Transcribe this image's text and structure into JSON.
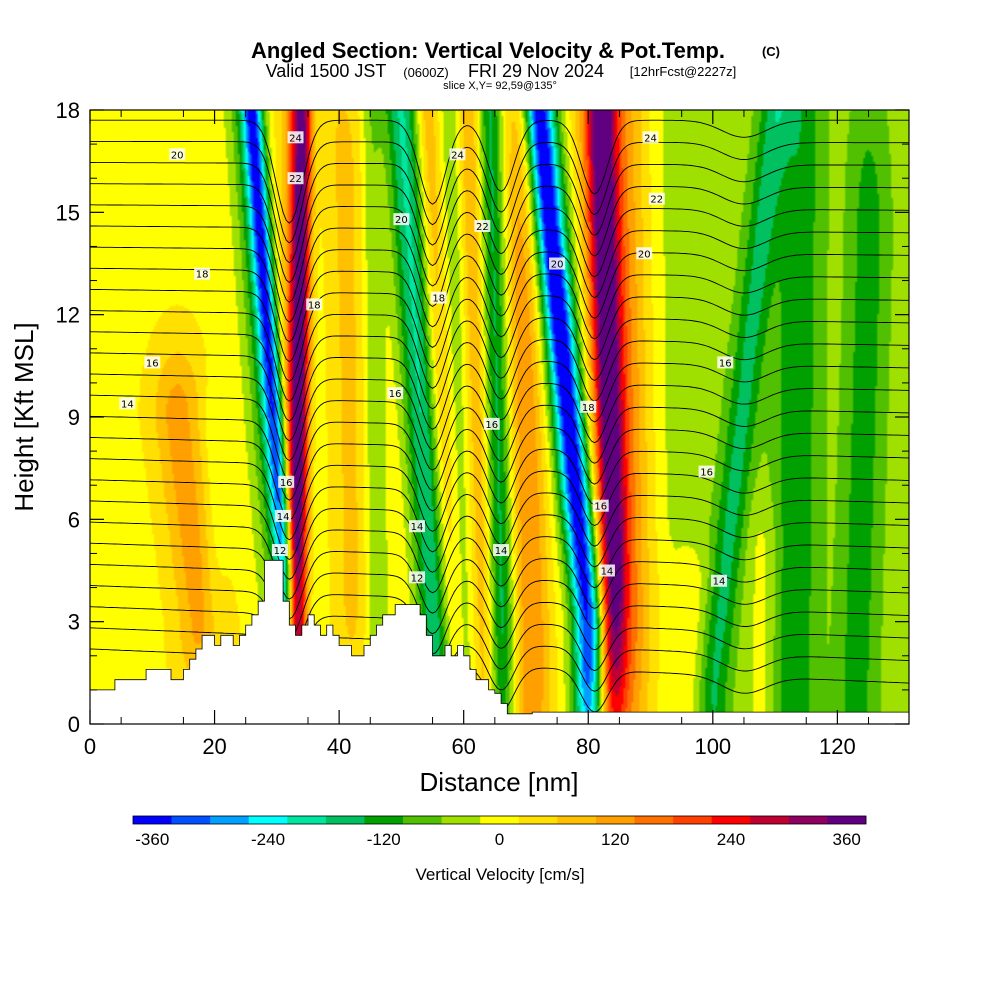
{
  "chart_data": {
    "type": "heatmap",
    "title": "Angled Section: Vertical Velocity & Pot.Temp.",
    "title_suffix": "(C)",
    "subtitle_valid": "Valid 1500 JST",
    "subtitle_zulu": "(0600Z)",
    "subtitle_date": "FRI 29 Nov 2024",
    "subtitle_fcst": "[12hrFcst@2227z]",
    "slice_text": "slice X,Y= 92,59@135°",
    "xlabel": "Distance [nm]",
    "ylabel": "Height [Kft MSL]",
    "colorbar_label": "Vertical Velocity [cm/s]",
    "xlim": [
      0,
      131.5
    ],
    "ylim": [
      0,
      18
    ],
    "x_ticks": [
      0,
      20,
      40,
      60,
      80,
      100,
      120
    ],
    "y_ticks": [
      0,
      3,
      6,
      9,
      12,
      15,
      18
    ],
    "colorbar": {
      "min": -380,
      "max": 380,
      "tick_labels": [
        "-360",
        "-240",
        "-120",
        "0",
        "120",
        "240",
        "360"
      ],
      "tick_values": [
        -360,
        -240,
        -120,
        0,
        120,
        240,
        360
      ],
      "colors": [
        "#0000ff",
        "#0050ff",
        "#00a0ff",
        "#00ffff",
        "#00e6a0",
        "#00c060",
        "#00a000",
        "#50c000",
        "#a0e000",
        "#ffff00",
        "#ffe000",
        "#ffc000",
        "#ffa000",
        "#ff7000",
        "#ff4000",
        "#ff0000",
        "#c00030",
        "#900060",
        "#600080"
      ]
    },
    "background_velocity": 10,
    "velocity_bands": [
      {
        "x_bottom": 31.5,
        "x_top": 26,
        "y_bottom": 4,
        "y_top": 18,
        "width": 1.6,
        "value": -280
      },
      {
        "x_bottom": 30.5,
        "x_top": 25,
        "y_bottom": 3,
        "y_top": 18,
        "width": 3.0,
        "value": -120
      },
      {
        "x_bottom": 33,
        "x_top": 34,
        "y_bottom": 3,
        "y_top": 17,
        "width": 1.6,
        "value": 300
      },
      {
        "x_bottom": 34,
        "x_top": 35,
        "y_bottom": 3,
        "y_top": 18,
        "width": 4.0,
        "value": 160
      },
      {
        "x_bottom": 36,
        "x_top": 36,
        "y_bottom": 3,
        "y_top": 18,
        "width": 2.5,
        "value": -140
      },
      {
        "x_bottom": 43,
        "x_top": 43,
        "y_bottom": 4,
        "y_top": 16,
        "width": 4.0,
        "value": 60
      },
      {
        "x_bottom": 46,
        "x_top": 45,
        "y_bottom": 3,
        "y_top": 18,
        "width": 2.0,
        "value": -100
      },
      {
        "x_bottom": 56,
        "x_top": 50,
        "y_bottom": 2,
        "y_top": 18,
        "width": 3.0,
        "value": -200
      },
      {
        "x_bottom": 58,
        "x_top": 54,
        "y_bottom": 2,
        "y_top": 18,
        "width": 2.0,
        "value": 100
      },
      {
        "x_bottom": 61,
        "x_top": 58,
        "y_bottom": 2,
        "y_top": 18,
        "width": 2.0,
        "value": -100
      },
      {
        "x_bottom": 63,
        "x_top": 61,
        "y_bottom": 2,
        "y_top": 18,
        "width": 3.0,
        "value": 120
      },
      {
        "x_bottom": 66,
        "x_top": 64,
        "y_bottom": 3,
        "y_top": 18,
        "width": 2.2,
        "value": -200
      },
      {
        "x_bottom": 71,
        "x_top": 69,
        "y_bottom": 2,
        "y_top": 18,
        "width": 3.0,
        "value": 130
      },
      {
        "x_bottom": 80,
        "x_top": 72,
        "y_bottom": 3,
        "y_top": 18,
        "width": 2.2,
        "value": -280
      },
      {
        "x_bottom": 81,
        "x_top": 72,
        "y_bottom": 3,
        "y_top": 18,
        "width": 4.0,
        "value": -150
      },
      {
        "x_bottom": 84,
        "x_top": 82,
        "y_bottom": 4,
        "y_top": 18,
        "width": 2.2,
        "value": 270
      },
      {
        "x_bottom": 85,
        "x_top": 83,
        "y_bottom": 3,
        "y_top": 18,
        "width": 5.0,
        "value": 170
      },
      {
        "x_bottom": 18,
        "x_top": 14,
        "y_bottom": 3,
        "y_top": 9,
        "width": 4.0,
        "value": 110
      },
      {
        "x_bottom": 20,
        "x_top": 20,
        "y_bottom": 2,
        "y_top": 8,
        "width": 2.0,
        "value": -40
      },
      {
        "x_bottom": 100,
        "x_top": 110,
        "y_bottom": 1,
        "y_top": 18,
        "width": 2.5,
        "value": -110
      },
      {
        "x_bottom": 113,
        "x_top": 114,
        "y_bottom": 1,
        "y_top": 18,
        "width": 3.5,
        "value": -90
      },
      {
        "x_bottom": 123,
        "x_top": 125,
        "y_bottom": 1,
        "y_top": 14,
        "width": 3.0,
        "value": -80
      },
      {
        "x_bottom": 96,
        "x_top": 96,
        "y_bottom": 0,
        "y_top": 4,
        "width": 3.5,
        "value": 50
      },
      {
        "x_bottom": 108,
        "x_top": 108,
        "y_bottom": 0,
        "y_top": 5,
        "width": 2.5,
        "value": 40
      }
    ],
    "green_region": {
      "x_from": 88,
      "value": -55
    },
    "terrain": [
      [
        0,
        1.0
      ],
      [
        4,
        1.0
      ],
      [
        4,
        1.3
      ],
      [
        9,
        1.3
      ],
      [
        9,
        1.6
      ],
      [
        13,
        1.6
      ],
      [
        13,
        1.3
      ],
      [
        15,
        1.3
      ],
      [
        15,
        1.6
      ],
      [
        16,
        1.6
      ],
      [
        16,
        1.9
      ],
      [
        17,
        1.9
      ],
      [
        17,
        2.2
      ],
      [
        18,
        2.2
      ],
      [
        18,
        2.6
      ],
      [
        20,
        2.6
      ],
      [
        20,
        2.3
      ],
      [
        21,
        2.3
      ],
      [
        21,
        2.6
      ],
      [
        23,
        2.6
      ],
      [
        23,
        2.3
      ],
      [
        24,
        2.3
      ],
      [
        24,
        2.6
      ],
      [
        25,
        2.6
      ],
      [
        25,
        2.9
      ],
      [
        26,
        2.9
      ],
      [
        26,
        3.2
      ],
      [
        27,
        3.2
      ],
      [
        27,
        3.6
      ],
      [
        28,
        3.6
      ],
      [
        28,
        4.8
      ],
      [
        31,
        4.8
      ],
      [
        31,
        3.6
      ],
      [
        32,
        3.6
      ],
      [
        32,
        2.9
      ],
      [
        33,
        2.9
      ],
      [
        33,
        2.6
      ],
      [
        34,
        2.6
      ],
      [
        34,
        2.9
      ],
      [
        35,
        2.9
      ],
      [
        35,
        3.2
      ],
      [
        36,
        3.2
      ],
      [
        36,
        2.9
      ],
      [
        37,
        2.9
      ],
      [
        37,
        2.6
      ],
      [
        38,
        2.6
      ],
      [
        38,
        2.9
      ],
      [
        39,
        2.9
      ],
      [
        39,
        2.6
      ],
      [
        40,
        2.6
      ],
      [
        40,
        2.3
      ],
      [
        42,
        2.3
      ],
      [
        42,
        2.0
      ],
      [
        44,
        2.0
      ],
      [
        44,
        2.3
      ],
      [
        45,
        2.3
      ],
      [
        45,
        2.6
      ],
      [
        46,
        2.6
      ],
      [
        46,
        2.9
      ],
      [
        47,
        2.9
      ],
      [
        47,
        3.2
      ],
      [
        49,
        3.2
      ],
      [
        49,
        3.5
      ],
      [
        53,
        3.5
      ],
      [
        53,
        3.2
      ],
      [
        54,
        3.2
      ],
      [
        54,
        2.6
      ],
      [
        55,
        2.6
      ],
      [
        55,
        2.0
      ],
      [
        57,
        2.0
      ],
      [
        57,
        2.3
      ],
      [
        58,
        2.3
      ],
      [
        58,
        2.0
      ],
      [
        59,
        2.0
      ],
      [
        59,
        2.3
      ],
      [
        60,
        2.3
      ],
      [
        60,
        2.0
      ],
      [
        61,
        2.0
      ],
      [
        61,
        1.6
      ],
      [
        62,
        1.6
      ],
      [
        62,
        1.3
      ],
      [
        64,
        1.3
      ],
      [
        64,
        1.0
      ],
      [
        65,
        1.0
      ],
      [
        65,
        0.9
      ],
      [
        66,
        0.9
      ],
      [
        66,
        0.6
      ],
      [
        67,
        0.6
      ],
      [
        67,
        0.3
      ],
      [
        71,
        0.3
      ],
      [
        71,
        0.35
      ],
      [
        131.5,
        0.35
      ]
    ],
    "contours": [
      {
        "level": 12,
        "y_left": 4.3,
        "y_right": 4.6,
        "dips": []
      },
      {
        "level": 14,
        "y_left": 5.6,
        "y_right": 5.4,
        "dips": [
          [
            33,
            1.3,
            3
          ],
          [
            55,
            1.2,
            3
          ],
          [
            66,
            1.2,
            3
          ],
          [
            81,
            1.0,
            3
          ]
        ]
      },
      {
        "level": 14,
        "y_left": 9.2,
        "y_right": 3.8,
        "dips": [
          [
            33,
            2.5,
            3
          ],
          [
            55,
            2.0,
            3
          ],
          [
            66,
            1.8,
            3
          ],
          [
            81,
            1.6,
            3
          ]
        ]
      },
      {
        "level": 16,
        "y_left": 10.6,
        "y_right": 7.8,
        "dips": [
          [
            32,
            3.5,
            3
          ],
          [
            55,
            3.0,
            3
          ],
          [
            67,
            2.5,
            3
          ],
          [
            81,
            2.6,
            3
          ]
        ]
      },
      {
        "level": 18,
        "y_left": 13.2,
        "y_right": 11.0,
        "dips": [
          [
            32,
            3.0,
            3
          ],
          [
            55,
            2.6,
            3
          ],
          [
            66,
            2.2,
            3
          ],
          [
            81,
            2.5,
            3
          ]
        ]
      },
      {
        "level": 20,
        "y_left": 16.6,
        "y_right": 15.2,
        "dips": [
          [
            30,
            2.6,
            3
          ],
          [
            55,
            2.2,
            3
          ],
          [
            66,
            2.0,
            3
          ],
          [
            81,
            2.0,
            3
          ]
        ]
      }
    ],
    "contour_labels": [
      {
        "text": "20",
        "x": 14,
        "y": 16.7
      },
      {
        "text": "18",
        "x": 18,
        "y": 13.2
      },
      {
        "text": "16",
        "x": 10,
        "y": 10.6
      },
      {
        "text": "14",
        "x": 6,
        "y": 9.4
      },
      {
        "text": "24",
        "x": 33,
        "y": 17.2
      },
      {
        "text": "22",
        "x": 33,
        "y": 16.0
      },
      {
        "text": "18",
        "x": 36,
        "y": 12.3
      },
      {
        "text": "16",
        "x": 31.5,
        "y": 7.1
      },
      {
        "text": "14",
        "x": 31,
        "y": 6.1
      },
      {
        "text": "12",
        "x": 30.5,
        "y": 5.1
      },
      {
        "text": "24",
        "x": 59,
        "y": 16.7
      },
      {
        "text": "20",
        "x": 50,
        "y": 14.8
      },
      {
        "text": "22",
        "x": 63,
        "y": 14.6
      },
      {
        "text": "18",
        "x": 56,
        "y": 12.5
      },
      {
        "text": "16",
        "x": 49,
        "y": 9.7
      },
      {
        "text": "14",
        "x": 52.5,
        "y": 5.8
      },
      {
        "text": "12",
        "x": 52.5,
        "y": 4.3
      },
      {
        "text": "16",
        "x": 64.5,
        "y": 8.8
      },
      {
        "text": "14",
        "x": 66,
        "y": 5.1
      },
      {
        "text": "20",
        "x": 75,
        "y": 13.5
      },
      {
        "text": "18",
        "x": 80,
        "y": 9.3
      },
      {
        "text": "16",
        "x": 82,
        "y": 6.4
      },
      {
        "text": "14",
        "x": 83,
        "y": 4.5
      },
      {
        "text": "24",
        "x": 90,
        "y": 17.2
      },
      {
        "text": "22",
        "x": 91,
        "y": 15.4
      },
      {
        "text": "20",
        "x": 89,
        "y": 13.8
      },
      {
        "text": "16",
        "x": 102,
        "y": 10.6
      },
      {
        "text": "16",
        "x": 99,
        "y": 7.4
      },
      {
        "text": "14",
        "x": 101,
        "y": 4.2
      }
    ]
  }
}
